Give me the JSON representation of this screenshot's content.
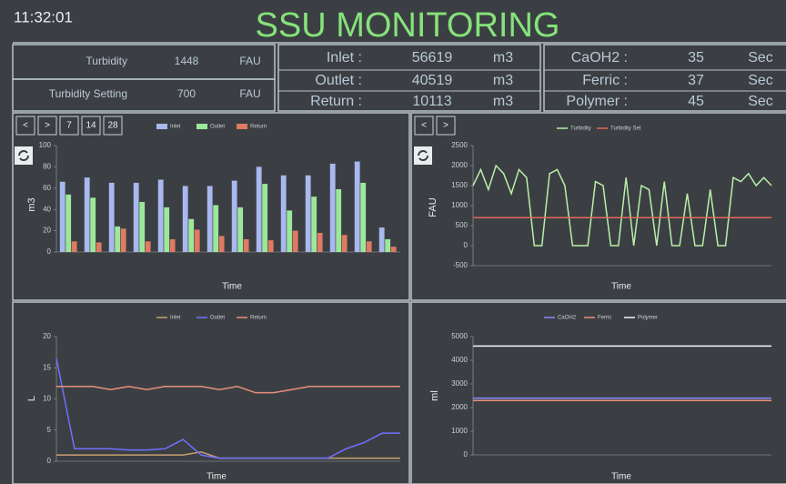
{
  "header": {
    "time": "11:32:01",
    "title": "SSU MONITORING"
  },
  "stats": [
    {
      "label": "Turbidity",
      "value": 1448,
      "unit": "FAU"
    },
    {
      "label": "Turbidity Setting",
      "value": 700,
      "unit": "FAU"
    },
    {
      "label": "Inlet :",
      "value": 56619,
      "unit": "m3"
    },
    {
      "label": "Outlet :",
      "value": 40519,
      "unit": "m3"
    },
    {
      "label": "Return :",
      "value": 10113,
      "unit": "m3"
    },
    {
      "label": "CaOH2 :",
      "value": 35,
      "unit": "Sec"
    },
    {
      "label": "Ferric :",
      "value": 37,
      "unit": "Sec"
    },
    {
      "label": "Polymer :",
      "value": 45,
      "unit": "Sec"
    }
  ],
  "controls": {
    "flow": [
      "<",
      ">",
      "7",
      "14",
      "28"
    ],
    "turbidity": [
      "<",
      ">"
    ]
  },
  "chart_data": [
    {
      "type": "bar",
      "y_label": "m3",
      "x_label": "Time",
      "ylim": [
        0,
        100
      ],
      "yticks": [
        0,
        20,
        40,
        60,
        80,
        100
      ],
      "series": [
        {
          "name": "Inlet",
          "color": "#a9b8ee",
          "values": [
            66,
            70,
            65,
            65,
            68,
            62,
            62,
            67,
            80,
            72,
            72,
            83,
            85,
            23
          ]
        },
        {
          "name": "Outlet",
          "color": "#9be89b",
          "values": [
            54,
            51,
            24,
            47,
            42,
            31,
            44,
            42,
            64,
            39,
            52,
            59,
            65,
            12
          ]
        },
        {
          "name": "Return",
          "color": "#e07a62",
          "values": [
            10,
            9,
            22,
            10,
            12,
            21,
            15,
            12,
            11,
            20,
            18,
            16,
            10,
            5
          ]
        }
      ]
    },
    {
      "type": "line",
      "y_label": "FAU",
      "x_label": "Time",
      "ylim": [
        -500,
        2500
      ],
      "yticks": [
        -500,
        0,
        500,
        1000,
        1500,
        2000,
        2500
      ],
      "series": [
        {
          "name": "Turbidity",
          "color": "#b8f0a8",
          "values": [
            1500,
            1900,
            1400,
            2000,
            1800,
            1300,
            1900,
            1700,
            0,
            0,
            1800,
            1900,
            1500,
            0,
            0,
            0,
            1600,
            1500,
            0,
            0,
            1700,
            0,
            1500,
            1400,
            0,
            1600,
            0,
            0,
            1300,
            0,
            0,
            1400,
            0,
            0,
            1700,
            1600,
            1800,
            1500,
            1700,
            1500
          ]
        },
        {
          "name": "Turbidity Set",
          "color": "#e06a5a",
          "values": [
            700,
            700,
            700,
            700,
            700,
            700,
            700,
            700,
            700,
            700,
            700,
            700,
            700,
            700,
            700,
            700,
            700,
            700,
            700,
            700,
            700,
            700,
            700,
            700,
            700,
            700,
            700,
            700,
            700,
            700,
            700,
            700,
            700,
            700,
            700,
            700,
            700,
            700,
            700,
            700
          ]
        }
      ]
    },
    {
      "type": "line",
      "y_label": "L",
      "x_label": "Time",
      "ylim": [
        0,
        20
      ],
      "yticks": [
        0,
        5,
        10,
        15,
        20
      ],
      "series": [
        {
          "name": "Inlet",
          "color": "#c8a070",
          "values": [
            1,
            1,
            1,
            1,
            1,
            1,
            1,
            1,
            1.5,
            0.5,
            0.5,
            0.5,
            0.5,
            0.5,
            0.5,
            0.5,
            0.5,
            0.5,
            0.5,
            0.5
          ]
        },
        {
          "name": "Outlet",
          "color": "#7070ff",
          "values": [
            16.5,
            2,
            2,
            2,
            1.8,
            1.8,
            2,
            3.5,
            1,
            0.5,
            0.5,
            0.5,
            0.5,
            0.5,
            0.5,
            0.5,
            2,
            3,
            4.5,
            4.5
          ]
        },
        {
          "name": "Return",
          "color": "#e8907a",
          "values": [
            12,
            12,
            12,
            11.5,
            12,
            11.5,
            12,
            12,
            12,
            11.5,
            12,
            11,
            11,
            11.5,
            12,
            12,
            12,
            12,
            12,
            12
          ]
        }
      ]
    },
    {
      "type": "line",
      "y_label": "ml",
      "x_label": "Time",
      "ylim": [
        0,
        5000
      ],
      "yticks": [
        0,
        1000,
        2000,
        3000,
        4000,
        5000
      ],
      "series": [
        {
          "name": "CaOH2",
          "color": "#8a8aff",
          "values": [
            2400,
            2400,
            2400,
            2400,
            2400,
            2400,
            2400,
            2400,
            2400,
            2400
          ]
        },
        {
          "name": "Ferric",
          "color": "#e8907a",
          "values": [
            2300,
            2300,
            2300,
            2300,
            2300,
            2300,
            2300,
            2300,
            2300,
            2300
          ]
        },
        {
          "name": "Polymer",
          "color": "#f4f4f4",
          "values": [
            4600,
            4600,
            4600,
            4600,
            4600,
            4600,
            4600,
            4600,
            4600,
            4600
          ]
        }
      ]
    }
  ]
}
